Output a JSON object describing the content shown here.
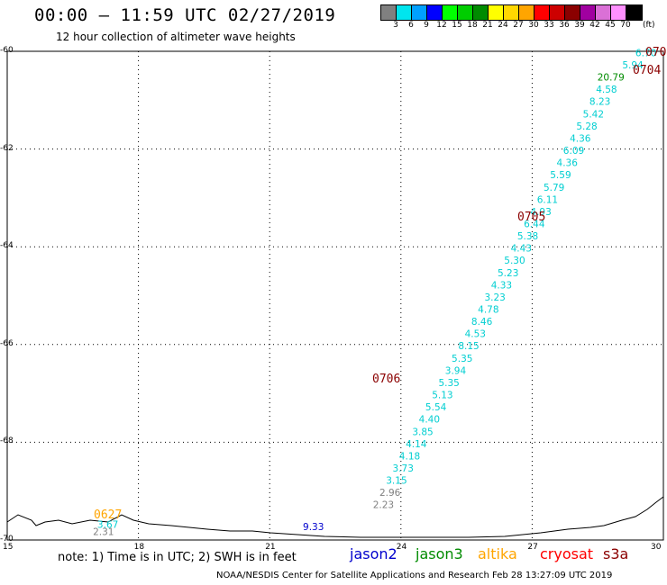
{
  "header": {
    "title": "00:00 – 11:59 UTC 02/27/2019",
    "subtitle": "12 hour collection of altimeter wave heights"
  },
  "colorbar": {
    "colors": [
      "#808080",
      "#00e5ee",
      "#00a0ff",
      "#0000ff",
      "#00ff00",
      "#00cd00",
      "#008b00",
      "#ffff00",
      "#ffd700",
      "#ffa500",
      "#ff0000",
      "#cd0000",
      "#8b0000",
      "#a000a0",
      "#da70d6",
      "#ff90ff",
      "#000000"
    ],
    "labels": [
      "3",
      "6",
      "9",
      "12",
      "15",
      "18",
      "21",
      "24",
      "27",
      "30",
      "33",
      "36",
      "39",
      "42",
      "45",
      "70"
    ],
    "unit": "(ft)"
  },
  "axes": {
    "x_ticks": [
      "15",
      "18",
      "21",
      "24",
      "27",
      "30"
    ],
    "y_ticks": [
      "-60",
      "-62",
      "-64",
      "-66",
      "-68",
      "-70"
    ]
  },
  "observations": [
    {
      "lon": 29.6,
      "lat": -60.1,
      "value": "6.70",
      "color": "#00ced1"
    },
    {
      "lon": 29.3,
      "lat": -60.35,
      "value": "5.94",
      "color": "#00ced1"
    },
    {
      "lon": 28.8,
      "lat": -60.6,
      "value": "20.79",
      "color": "#008b00"
    },
    {
      "lon": 28.7,
      "lat": -60.85,
      "value": "4.58",
      "color": "#00ced1"
    },
    {
      "lon": 28.55,
      "lat": -61.1,
      "value": "8.23",
      "color": "#00ced1"
    },
    {
      "lon": 28.4,
      "lat": -61.35,
      "value": "5.42",
      "color": "#00ced1"
    },
    {
      "lon": 28.25,
      "lat": -61.6,
      "value": "5.28",
      "color": "#00ced1"
    },
    {
      "lon": 28.1,
      "lat": -61.85,
      "value": "4.36",
      "color": "#00ced1"
    },
    {
      "lon": 27.95,
      "lat": -62.1,
      "value": "6.09",
      "color": "#00ced1"
    },
    {
      "lon": 27.8,
      "lat": -62.35,
      "value": "4.36",
      "color": "#00ced1"
    },
    {
      "lon": 27.65,
      "lat": -62.6,
      "value": "5.59",
      "color": "#00ced1"
    },
    {
      "lon": 27.5,
      "lat": -62.85,
      "value": "5.79",
      "color": "#00ced1"
    },
    {
      "lon": 27.35,
      "lat": -63.1,
      "value": "6.11",
      "color": "#00ced1"
    },
    {
      "lon": 27.2,
      "lat": -63.35,
      "value": "4.93",
      "color": "#00ced1"
    },
    {
      "lon": 27.05,
      "lat": -63.6,
      "value": "6.44",
      "color": "#00ced1"
    },
    {
      "lon": 26.9,
      "lat": -63.85,
      "value": "5.38",
      "color": "#00ced1"
    },
    {
      "lon": 26.75,
      "lat": -64.1,
      "value": "4.43",
      "color": "#00ced1"
    },
    {
      "lon": 26.6,
      "lat": -64.35,
      "value": "5.30",
      "color": "#00ced1"
    },
    {
      "lon": 26.45,
      "lat": -64.6,
      "value": "5.23",
      "color": "#00ced1"
    },
    {
      "lon": 26.3,
      "lat": -64.85,
      "value": "4.33",
      "color": "#00ced1"
    },
    {
      "lon": 26.15,
      "lat": -65.1,
      "value": "3.23",
      "color": "#00ced1"
    },
    {
      "lon": 26.0,
      "lat": -65.35,
      "value": "4.78",
      "color": "#00ced1"
    },
    {
      "lon": 25.85,
      "lat": -65.6,
      "value": "8.46",
      "color": "#00ced1"
    },
    {
      "lon": 25.7,
      "lat": -65.85,
      "value": "4.53",
      "color": "#00ced1"
    },
    {
      "lon": 25.55,
      "lat": -66.1,
      "value": "8.15",
      "color": "#00ced1"
    },
    {
      "lon": 25.4,
      "lat": -66.35,
      "value": "5.35",
      "color": "#00ced1"
    },
    {
      "lon": 25.25,
      "lat": -66.6,
      "value": "3.94",
      "color": "#00ced1"
    },
    {
      "lon": 25.1,
      "lat": -66.85,
      "value": "5.35",
      "color": "#00ced1"
    },
    {
      "lon": 24.95,
      "lat": -67.1,
      "value": "5.13",
      "color": "#00ced1"
    },
    {
      "lon": 24.8,
      "lat": -67.35,
      "value": "5.54",
      "color": "#00ced1"
    },
    {
      "lon": 24.65,
      "lat": -67.6,
      "value": "4.40",
      "color": "#00ced1"
    },
    {
      "lon": 24.5,
      "lat": -67.85,
      "value": "3.85",
      "color": "#00ced1"
    },
    {
      "lon": 24.35,
      "lat": -68.1,
      "value": "4.14",
      "color": "#00ced1"
    },
    {
      "lon": 24.2,
      "lat": -68.35,
      "value": "4.18",
      "color": "#00ced1"
    },
    {
      "lon": 24.05,
      "lat": -68.6,
      "value": "3.73",
      "color": "#00ced1"
    },
    {
      "lon": 23.9,
      "lat": -68.85,
      "value": "3.15",
      "color": "#00ced1"
    },
    {
      "lon": 23.75,
      "lat": -69.1,
      "value": "2.96",
      "color": "#808080"
    },
    {
      "lon": 23.6,
      "lat": -69.35,
      "value": "2.23",
      "color": "#808080"
    },
    {
      "lon": 22.0,
      "lat": -69.8,
      "value": "9.33",
      "color": "#0000cd"
    },
    {
      "lon": 17.3,
      "lat": -69.75,
      "value": "3.67",
      "color": "#00ced1"
    },
    {
      "lon": 17.2,
      "lat": -69.9,
      "value": "2.31",
      "color": "#808080"
    }
  ],
  "pass_labels": [
    {
      "text": "0705",
      "color": "#8b0000"
    },
    {
      "text": "0704",
      "color": "#8b0000"
    },
    {
      "text": "070",
      "color": "#8b0000"
    },
    {
      "text": "0706",
      "color": "#8b0000"
    },
    {
      "text": "0627",
      "color": "#ffa500"
    }
  ],
  "footer": {
    "note": "note:  1) Time is in UTC;  2) SWH is in feet",
    "legend": [
      {
        "name": "jason2",
        "color": "#0000cd"
      },
      {
        "name": "jason3",
        "color": "#008b00"
      },
      {
        "name": "altika",
        "color": "#ffa500"
      },
      {
        "name": "cryosat",
        "color": "#ff0000"
      },
      {
        "name": "s3a",
        "color": "#8b0000"
      }
    ],
    "credit": "NOAA/NESDIS Center for Satellite Applications and Research     Feb 28 13:27:09 UTC 2019"
  }
}
